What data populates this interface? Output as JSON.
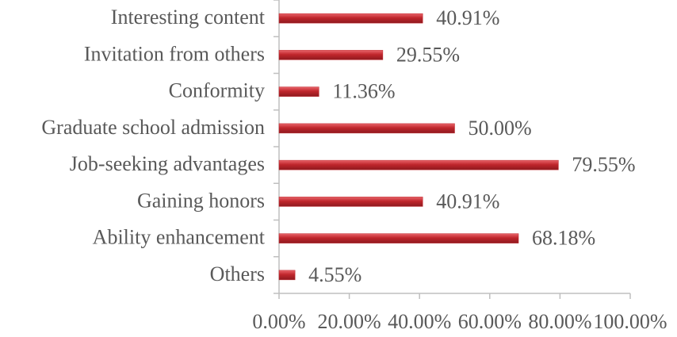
{
  "chart_data": {
    "type": "bar",
    "orientation": "horizontal",
    "categories": [
      "Interesting content",
      "Invitation from others",
      "Conformity",
      "Graduate school admission",
      "Job-seeking advantages",
      "Gaining honors",
      "Ability enhancement",
      "Others"
    ],
    "values": [
      40.91,
      29.55,
      11.36,
      50.0,
      79.55,
      40.91,
      68.18,
      4.55
    ],
    "value_labels": [
      "40.91%",
      "29.55%",
      "11.36%",
      "50.00%",
      "79.55%",
      "40.91%",
      "68.18%",
      "4.55%"
    ],
    "color": "#c0262c",
    "xlim": [
      0,
      100
    ],
    "xticks": [
      {
        "value": 0,
        "label": "0.00%"
      },
      {
        "value": 20,
        "label": "20.00%"
      },
      {
        "value": 40,
        "label": "40.00%"
      },
      {
        "value": 60,
        "label": "60.00%"
      },
      {
        "value": 80,
        "label": "80.00%"
      },
      {
        "value": 100,
        "label": "100.00%"
      }
    ],
    "grid": false
  }
}
